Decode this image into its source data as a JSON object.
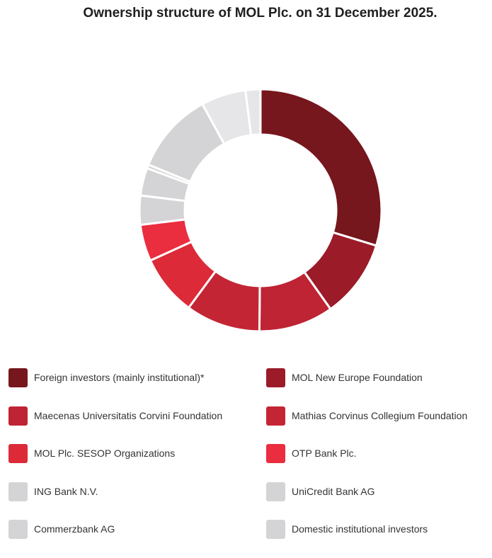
{
  "chart_data": {
    "type": "donut",
    "title": "Ownership structure of MOL Plc. on 31 December 2025.",
    "series": [
      {
        "name": "Foreign investors (mainly institutional)*",
        "value": 29.8,
        "color": "#76161d"
      },
      {
        "name": "MOL New Europe Foundation",
        "value": 10.5,
        "color": "#9b1b29"
      },
      {
        "name": "Maecenas Universitatis Corvini Foundation",
        "value": 10.0,
        "color": "#be2433"
      },
      {
        "name": "Mathias Corvinus Collegium Foundation",
        "value": 10.0,
        "color": "#c42535"
      },
      {
        "name": "MOL Plc. SESOP Organizations",
        "value": 8.1,
        "color": "#dc2a38"
      },
      {
        "name": "OTP Bank Plc.",
        "value": 4.9,
        "color": "#ea2d3f"
      },
      {
        "name": "ING Bank N.V.",
        "value": 3.9,
        "color": "#d4d4d6"
      },
      {
        "name": "UniCredit Bank AG",
        "value": 3.7,
        "color": "#d4d4d6"
      },
      {
        "name": "Commerzbank AG",
        "value": 0.5,
        "color": "#d4d4d6"
      },
      {
        "name": "Domestic institutional investors",
        "value": 10.9,
        "color": "#d4d4d6"
      },
      {
        "name": "",
        "value": 6.0,
        "color": "#e6e6e8"
      },
      {
        "name": "",
        "value": 2.0,
        "color": "#e6e6e8"
      }
    ],
    "legend_position": "bottom"
  }
}
